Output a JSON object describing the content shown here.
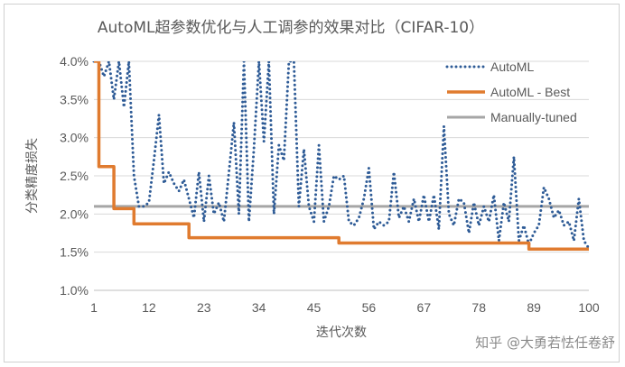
{
  "watermark": "知乎 @大勇若怯任卷舒",
  "chart_data": {
    "type": "line",
    "title": "AutoML超参数优化与人工调参的效果对比（CIFAR-10）",
    "xlabel": "迭代次数",
    "ylabel": "分类精度损失",
    "xlim": [
      1,
      100
    ],
    "ylim": [
      0.01,
      0.04
    ],
    "x_ticks": [
      "1",
      "12",
      "23",
      "34",
      "45",
      "56",
      "67",
      "78",
      "89",
      "100"
    ],
    "y_ticks": [
      "1.0%",
      "1.5%",
      "2.0%",
      "2.5%",
      "3.0%",
      "3.5%",
      "4.0%"
    ],
    "grid": "horizontal",
    "legend_position": "top-right",
    "colors": {
      "automl": "#2e5b96",
      "best": "#e07b2f",
      "manual": "#a6a6a6"
    },
    "series": [
      {
        "name": "AutoML",
        "style": "dotted",
        "values": [
          0.04,
          0.04,
          0.038,
          0.04,
          0.035,
          0.04,
          0.034,
          0.04,
          0.025,
          0.021,
          0.021,
          0.0215,
          0.027,
          0.033,
          0.024,
          0.0255,
          0.024,
          0.023,
          0.0245,
          0.022,
          0.0195,
          0.0255,
          0.019,
          0.025,
          0.02,
          0.0215,
          0.019,
          0.0255,
          0.032,
          0.02,
          0.04,
          0.019,
          0.0285,
          0.04,
          0.0295,
          0.04,
          0.02,
          0.029,
          0.027,
          0.04,
          0.04,
          0.021,
          0.0285,
          0.021,
          0.019,
          0.029,
          0.019,
          0.021,
          0.025,
          0.0245,
          0.025,
          0.019,
          0.0185,
          0.0195,
          0.022,
          0.026,
          0.018,
          0.019,
          0.0185,
          0.019,
          0.0255,
          0.0195,
          0.021,
          0.019,
          0.022,
          0.019,
          0.0225,
          0.019,
          0.0225,
          0.018,
          0.0315,
          0.02,
          0.0185,
          0.022,
          0.0215,
          0.0175,
          0.0215,
          0.0185,
          0.021,
          0.019,
          0.0225,
          0.0165,
          0.0215,
          0.019,
          0.0275,
          0.0165,
          0.0185,
          0.016,
          0.0175,
          0.0185,
          0.0235,
          0.022,
          0.0195,
          0.0205,
          0.0185,
          0.019,
          0.0165,
          0.022,
          0.0165,
          0.0155
        ]
      },
      {
        "name": "AutoML - Best",
        "style": "solid",
        "values": [
          0.04,
          0.0262,
          0.0262,
          0.0262,
          0.0207,
          0.0207,
          0.0207,
          0.0207,
          0.0187,
          0.0187,
          0.0187,
          0.0187,
          0.0187,
          0.0187,
          0.0187,
          0.0187,
          0.0187,
          0.0187,
          0.0187,
          0.0169,
          0.0169,
          0.0169,
          0.0169,
          0.0169,
          0.0169,
          0.0169,
          0.0169,
          0.0169,
          0.0169,
          0.0169,
          0.0169,
          0.0169,
          0.0169,
          0.0169,
          0.0169,
          0.0169,
          0.0169,
          0.0169,
          0.0169,
          0.0169,
          0.0169,
          0.0169,
          0.0169,
          0.0169,
          0.0169,
          0.0169,
          0.0169,
          0.0169,
          0.0169,
          0.0162,
          0.0162,
          0.0162,
          0.0162,
          0.0162,
          0.0162,
          0.0162,
          0.0162,
          0.0162,
          0.0162,
          0.0162,
          0.0162,
          0.0162,
          0.0162,
          0.0162,
          0.0162,
          0.0162,
          0.0162,
          0.0162,
          0.0162,
          0.0162,
          0.0162,
          0.0162,
          0.0162,
          0.0162,
          0.0162,
          0.0162,
          0.0162,
          0.0162,
          0.0162,
          0.0162,
          0.0162,
          0.0162,
          0.0162,
          0.0162,
          0.0162,
          0.0162,
          0.0162,
          0.0154,
          0.0154,
          0.0154,
          0.0154,
          0.0154,
          0.0154,
          0.0154,
          0.0154,
          0.0154,
          0.0154,
          0.0154,
          0.0154,
          0.0154
        ]
      },
      {
        "name": "Manually-tuned",
        "style": "solid",
        "values": [
          0.021,
          0.021
        ]
      }
    ]
  }
}
